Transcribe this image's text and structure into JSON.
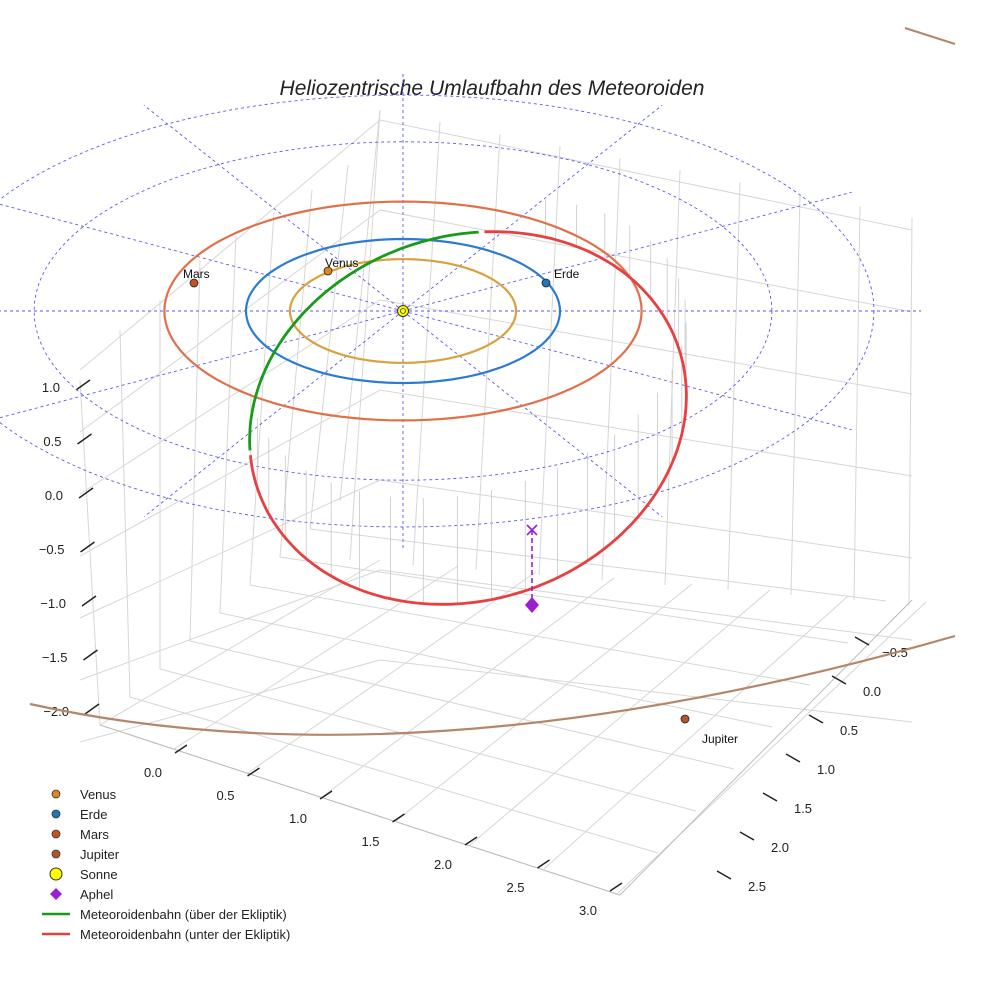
{
  "chart_data": {
    "type": "line3d",
    "title": "Heliozentrische Umlaufbahn des Meteoroiden",
    "axes": {
      "x": {
        "ticks": [
          "0.0",
          "0.5",
          "1.0",
          "1.5",
          "2.0",
          "2.5",
          "3.0"
        ]
      },
      "y": {
        "ticks": [
          "−0.5",
          "0.0",
          "0.5",
          "1.0",
          "1.5",
          "2.0",
          "2.5"
        ]
      },
      "z": {
        "ticks": [
          "1.0",
          "0.5",
          "0.0",
          "−0.5",
          "−1.0",
          "−1.5",
          "−2.0"
        ]
      }
    },
    "planets": [
      {
        "name": "Venus",
        "orbit_radius_au": 0.72,
        "color": "#d9a13b",
        "marker_color": "#d98a1e"
      },
      {
        "name": "Erde",
        "orbit_radius_au": 1.0,
        "color": "#2b7bd4",
        "marker_color": "#1f77b4"
      },
      {
        "name": "Mars",
        "orbit_radius_au": 1.52,
        "color": "#e07048",
        "marker_color": "#c8501c"
      },
      {
        "name": "Jupiter",
        "orbit_radius_au": 5.2,
        "color": "#b5876a",
        "marker_color": "#b0572a"
      }
    ],
    "sun": {
      "name": "Sonne",
      "color": "#ffff00"
    },
    "aphel": {
      "name": "Aphel",
      "color": "#9b1fd1",
      "marker": "diamond"
    },
    "meteoroid_orbit": {
      "above_ecliptic": {
        "name": "Meteoroidenbahn (über der Ekliptik)",
        "color": "#1a9a1a"
      },
      "below_ecliptic": {
        "name": "Meteoroidenbahn (unter der Ekliptik)",
        "color": "#e84040"
      }
    },
    "reference_grid": {
      "color": "#5a5aee",
      "style": "dashed"
    },
    "legend_position": "bottom-left",
    "grid": true
  },
  "legend": [
    {
      "label": "Venus",
      "symbol": "dot",
      "color": "#d98a1e"
    },
    {
      "label": "Erde",
      "symbol": "dot",
      "color": "#1f77b4"
    },
    {
      "label": "Mars",
      "symbol": "dot",
      "color": "#c8501c"
    },
    {
      "label": "Jupiter",
      "symbol": "dot",
      "color": "#b0572a"
    },
    {
      "label": "Sonne",
      "symbol": "bigdot",
      "color": "#ffff00"
    },
    {
      "label": "Aphel",
      "symbol": "diamond",
      "color": "#9b1fd1"
    },
    {
      "label": "Meteoroidenbahn (über der Ekliptik)",
      "symbol": "line",
      "color": "#1a9a1a"
    },
    {
      "label": "Meteoroidenbahn (unter der Ekliptik)",
      "symbol": "line",
      "color": "#e84040"
    }
  ]
}
